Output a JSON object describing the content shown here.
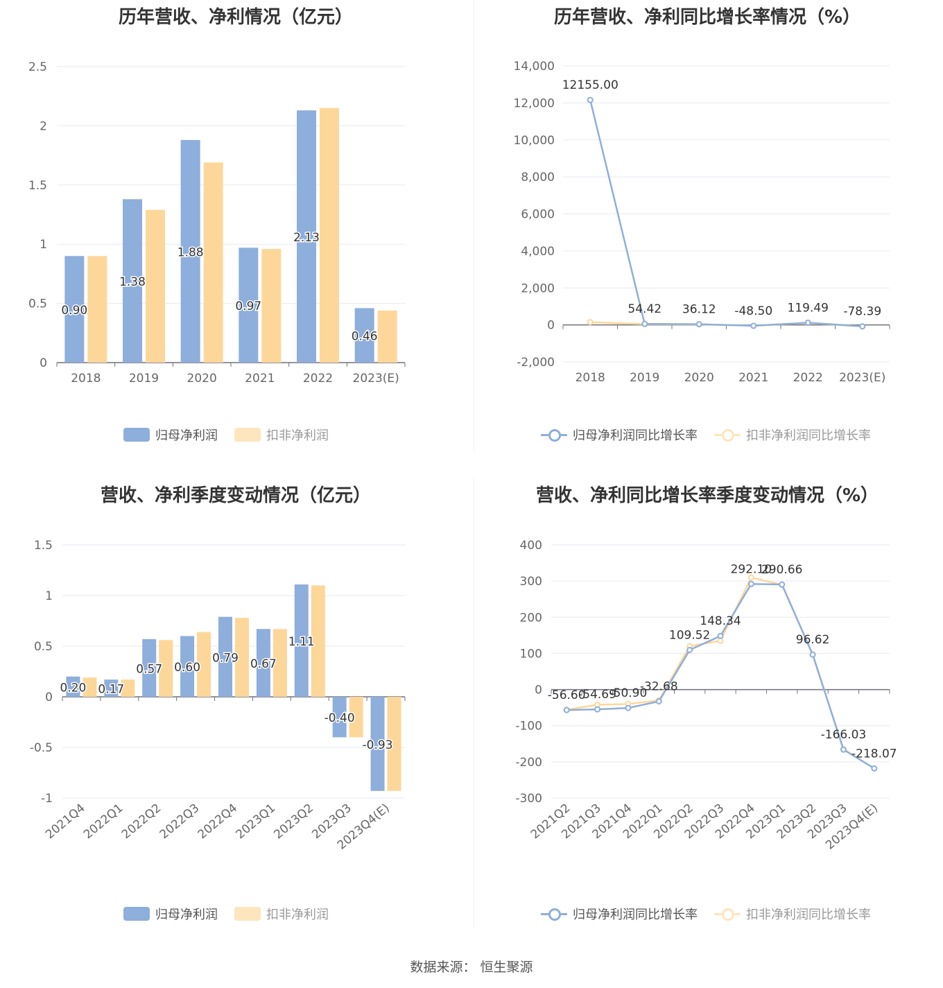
{
  "colors": {
    "primary": "#8eaedb",
    "secondary": "#fdd79a",
    "grid": "#e6e9f0",
    "axis": "#6e7079"
  },
  "footer": "数据来源：  恒生聚源",
  "chart_data": [
    {
      "type": "bar",
      "title": "历年营收、净利情况（亿元）",
      "categories": [
        "2018",
        "2019",
        "2020",
        "2021",
        "2022",
        "2023(E)"
      ],
      "ylim": [
        0,
        2.5
      ],
      "yticks": [
        "0",
        "0.5",
        "1",
        "1.5",
        "2",
        "2.5"
      ],
      "grid": true,
      "legend": "bottom",
      "series": [
        {
          "name": "归母净利润",
          "values": [
            0.9,
            1.38,
            1.88,
            0.97,
            2.13,
            0.46
          ],
          "labels": [
            "0.90",
            "1.38",
            "1.88",
            "0.97",
            "2.13",
            "0.46"
          ]
        },
        {
          "name": "扣非净利润",
          "values": [
            0.9,
            1.29,
            1.69,
            0.96,
            2.15,
            0.44
          ]
        }
      ]
    },
    {
      "type": "line",
      "title": "历年营收、净利同比增长率情况（%）",
      "categories": [
        "2018",
        "2019",
        "2020",
        "2021",
        "2022",
        "2023(E)"
      ],
      "ylim": [
        -2000,
        14000
      ],
      "yticks": [
        "-2,000",
        "0",
        "2,000",
        "4,000",
        "6,000",
        "8,000",
        "10,000",
        "12,000",
        "14,000"
      ],
      "grid": true,
      "legend": "bottom",
      "series": [
        {
          "name": "归母净利润同比增长率",
          "values": [
            12155.0,
            54.42,
            36.12,
            -48.5,
            119.49,
            -78.39
          ],
          "labels": [
            "12155.00",
            "54.42",
            "36.12",
            "-48.50",
            "119.49",
            "-78.39"
          ]
        },
        {
          "name": "扣非净利润同比增长率",
          "values": [
            150,
            40,
            30,
            -40,
            110,
            -80
          ]
        }
      ]
    },
    {
      "type": "bar",
      "title": "营收、净利季度变动情况（亿元）",
      "categories": [
        "2021Q4",
        "2022Q1",
        "2022Q2",
        "2022Q3",
        "2022Q4",
        "2023Q1",
        "2023Q2",
        "2023Q3",
        "2023Q4(E)"
      ],
      "ylim": [
        -1,
        1.5
      ],
      "yticks": [
        "-1",
        "-0.5",
        "0",
        "0.5",
        "1",
        "1.5"
      ],
      "grid": true,
      "legend": "bottom",
      "series": [
        {
          "name": "归母净利润",
          "values": [
            0.2,
            0.17,
            0.57,
            0.6,
            0.79,
            0.67,
            1.11,
            -0.4,
            -0.93
          ],
          "labels": [
            "0.20",
            "0.17",
            "0.57",
            "0.60",
            "0.79",
            "0.67",
            "1.11",
            "-0.40",
            "-0.93"
          ]
        },
        {
          "name": "扣非净利润",
          "values": [
            0.19,
            0.17,
            0.56,
            0.64,
            0.78,
            0.67,
            1.1,
            -0.4,
            -0.93
          ]
        }
      ]
    },
    {
      "type": "line",
      "title": "营收、净利同比增长率季度变动情况（%）",
      "categories": [
        "2021Q2",
        "2021Q3",
        "2021Q4",
        "2022Q1",
        "2022Q2",
        "2022Q3",
        "2022Q4",
        "2023Q1",
        "2023Q2",
        "2023Q3",
        "2023Q4(E)"
      ],
      "ylim": [
        -300,
        400
      ],
      "yticks": [
        "-300",
        "-200",
        "-100",
        "0",
        "100",
        "200",
        "300",
        "400"
      ],
      "grid": true,
      "legend": "bottom",
      "series": [
        {
          "name": "归母净利润同比增长率",
          "values": [
            -56.6,
            -54.69,
            -50.9,
            -32.68,
            109.52,
            148.34,
            292.1,
            290.66,
            96.62,
            -166.03,
            -218.07
          ],
          "labels": [
            "-56.60",
            "-54.69",
            "-50.90",
            "-32.68",
            "109.52",
            "148.34",
            "292.10",
            "290.66",
            "96.62",
            "-166.03",
            "-218.07"
          ]
        },
        {
          "name": "扣非净利润同比增长率",
          "values": [
            -56,
            -42,
            -40,
            -30,
            120,
            135,
            310,
            290,
            97,
            -165,
            -218
          ]
        }
      ]
    }
  ]
}
